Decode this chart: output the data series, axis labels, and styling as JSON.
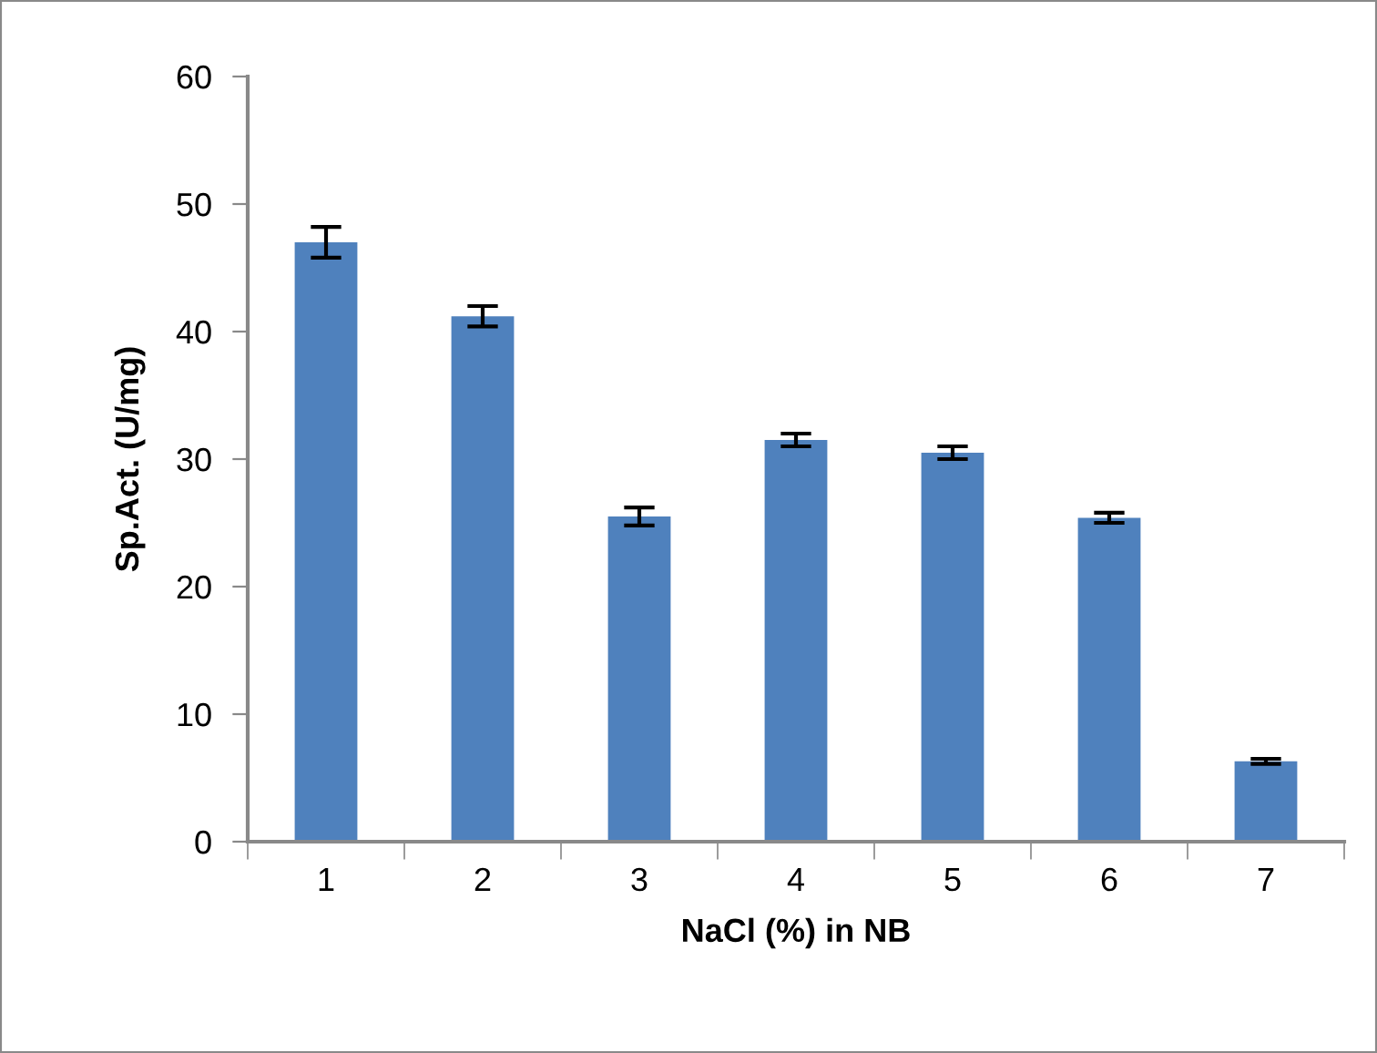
{
  "chart_data": {
    "type": "bar",
    "xlabel": "NaCl (%) in NB",
    "ylabel": "Sp.Act. (U/mg)",
    "categories": [
      "1",
      "2",
      "3",
      "4",
      "5",
      "6",
      "7"
    ],
    "values": [
      47.0,
      41.2,
      25.5,
      31.5,
      30.5,
      25.4,
      6.3
    ],
    "errors": [
      1.2,
      0.8,
      0.7,
      0.5,
      0.5,
      0.4,
      0.2
    ],
    "color": "#4f81bd",
    "ylim": [
      0,
      60
    ],
    "yticks": [
      0,
      10,
      20,
      30,
      40,
      50,
      60
    ],
    "grid": false
  }
}
